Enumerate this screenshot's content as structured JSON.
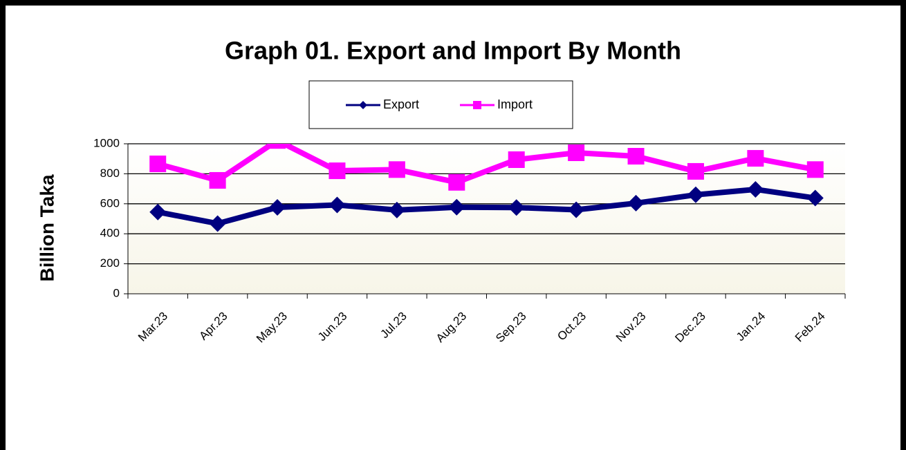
{
  "chart_data": {
    "type": "line",
    "title": "Graph 01. Export and Import By Month",
    "y_label": "Billion Taka",
    "categories": [
      "Mar.23",
      "Apr.23",
      "May.23",
      "Jun.23",
      "Jul.23",
      "Aug.23",
      "Sep.23",
      "Oct.23",
      "Nov.23",
      "Dec.23",
      "Jan.24",
      "Feb.24"
    ],
    "series": [
      {
        "name": "Export",
        "color": "#000080",
        "marker": "diamond",
        "values": [
          545,
          468,
          576,
          592,
          558,
          577,
          575,
          560,
          604,
          660,
          696,
          638
        ]
      },
      {
        "name": "Import",
        "color": "#ff00ff",
        "marker": "square",
        "values": [
          866,
          756,
          1022,
          820,
          828,
          743,
          894,
          940,
          917,
          816,
          903,
          828
        ]
      }
    ],
    "ylim": [
      0,
      1000
    ],
    "yticks": [
      0,
      200,
      400,
      600,
      800,
      1000
    ],
    "grid": true,
    "legend": "top"
  }
}
